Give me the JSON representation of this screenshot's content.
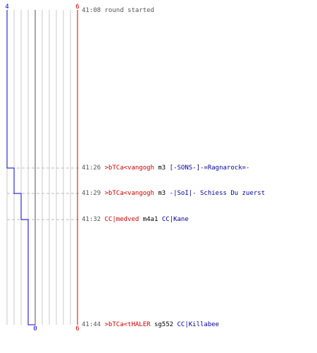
{
  "scale": {
    "left_start": "4",
    "right_start": "6",
    "left_end": "0",
    "right_end": "6"
  },
  "colors": {
    "team_left": "#0000cc",
    "team_right": "#cc0000",
    "grid": "#c8c8c8",
    "dash": "#bbbbbb",
    "text": "#555555"
  },
  "events": [
    {
      "time": "41:08",
      "type": "info",
      "text": "round started"
    },
    {
      "time": "41:26",
      "type": "kill",
      "killer": ">bTCa<vangogh",
      "weapon": "m3",
      "victim": "[-SONS-]-=Ragnarock=-"
    },
    {
      "time": "41:29",
      "type": "kill",
      "killer": ">bTCa<vangogh",
      "weapon": "m3",
      "victim": "-|SoI|- Schiess Du zuerst"
    },
    {
      "time": "41:32",
      "type": "kill",
      "killer": "CC|medved",
      "weapon": "m4a1",
      "victim": "CC|Kane"
    },
    {
      "time": "41:44",
      "type": "kill",
      "killer": ">bTCa<tHALER",
      "weapon": "sg552",
      "victim": "CC|Killabee"
    }
  ]
}
